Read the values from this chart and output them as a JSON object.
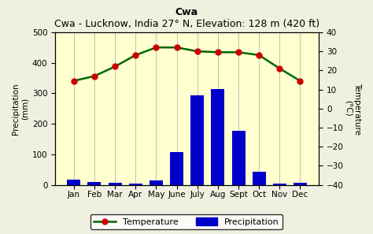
{
  "title_bold": "Cwa",
  "title_rest": " - Lucknow, India 27° N, Elevation: 128 m (420 ft)",
  "months": [
    "Jan",
    "Feb",
    "Mar",
    "Apr",
    "May",
    "June",
    "July",
    "Aug",
    "Sept",
    "Oct",
    "Nov",
    "Dec"
  ],
  "precipitation": [
    18,
    10,
    7,
    4,
    15,
    107,
    293,
    315,
    178,
    43,
    3,
    7
  ],
  "temperature": [
    14.5,
    17,
    22,
    28,
    32,
    32,
    30,
    29.5,
    29.5,
    28,
    21,
    14.5
  ],
  "precip_ylim": [
    0,
    500
  ],
  "temp_ylim": [
    -40,
    40
  ],
  "temp_yticks": [
    -40,
    -30,
    -20,
    -10,
    0,
    10,
    20,
    30,
    40
  ],
  "precip_yticks": [
    0,
    100,
    200,
    300,
    400,
    500
  ],
  "bar_color": "#0000cc",
  "line_color": "#006600",
  "marker_color": "#cc0000",
  "background_color": "#ffffd0",
  "outer_background": "#f0f0e0",
  "ylabel_left": "Precipitation\n(mm)",
  "ylabel_right": "Temperature\n(°C)",
  "legend_temp": "Temperature",
  "legend_precip": "Precipitation",
  "figsize": [
    4.74,
    2.97
  ],
  "dpi": 100
}
